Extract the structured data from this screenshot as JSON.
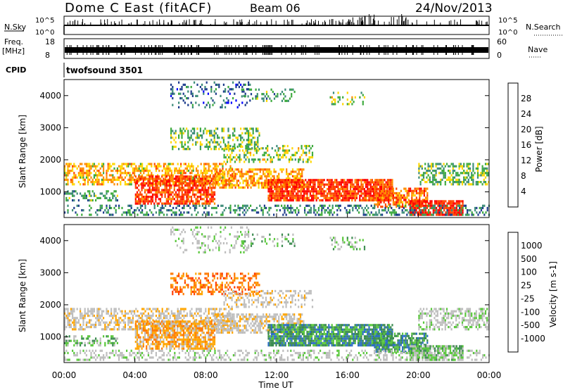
{
  "header": {
    "station": "Dome C East (fitACF)",
    "beam": "Beam 06",
    "date": "24/Nov/2013"
  },
  "nsky_panel": {
    "left_label": "N.Sky",
    "right_label": "N.Search",
    "left_ticks": [
      "10^5",
      "10^0"
    ],
    "right_ticks": [
      "10^5",
      "10^0"
    ]
  },
  "freq_panel": {
    "left_label_1": "Freq.",
    "left_label_2": "[MHz]",
    "right_label": "Nave",
    "left_ticks": [
      "18",
      "8"
    ],
    "right_ticks": [
      "60",
      "0"
    ]
  },
  "cpid": {
    "label": "CPID",
    "value": "twofsound 3501"
  },
  "colors": {
    "power_scale": [
      "#0000ff",
      "#1e3c8c",
      "#3c8c78",
      "#3caa3c",
      "#ffd700",
      "#ff8c00",
      "#ff4500",
      "#ff0000"
    ],
    "velocity_scale": [
      "#1e32b4",
      "#2e6fc4",
      "#3c8c50",
      "#5ac83c",
      "#bebebe",
      "#bebebe",
      "#ffa500",
      "#ff7800",
      "#ff3c00",
      "#ff0000"
    ]
  },
  "chart_data": [
    {
      "type": "heatmap",
      "name": "power",
      "ylabel": "Slant Range [km]",
      "yticks": [
        "1000",
        "2000",
        "3000",
        "4000"
      ],
      "ylim": [
        200,
        4500
      ],
      "xlim_hours": [
        0,
        24
      ],
      "colorbar_label": "Power [dB]",
      "colorbar_ticks": [
        "4",
        "8",
        "12",
        "16",
        "20",
        "24",
        "28"
      ],
      "colorbar_range": [
        0,
        32
      ]
    },
    {
      "type": "heatmap",
      "name": "velocity",
      "ylabel": "Slant Range [km]",
      "yticks": [
        "1000",
        "2000",
        "3000",
        "4000"
      ],
      "ylim": [
        200,
        4500
      ],
      "xlim_hours": [
        0,
        24
      ],
      "xlabel": "Time UT",
      "xticks": [
        "00:00",
        "04:00",
        "08:00",
        "12:00",
        "16:00",
        "20:00",
        "00:00"
      ],
      "colorbar_label": "Velocity [m s-1]",
      "colorbar_ticks": [
        "1000",
        "500",
        "100",
        "25",
        "-25",
        "-100",
        "-500",
        "-1000"
      ]
    }
  ]
}
